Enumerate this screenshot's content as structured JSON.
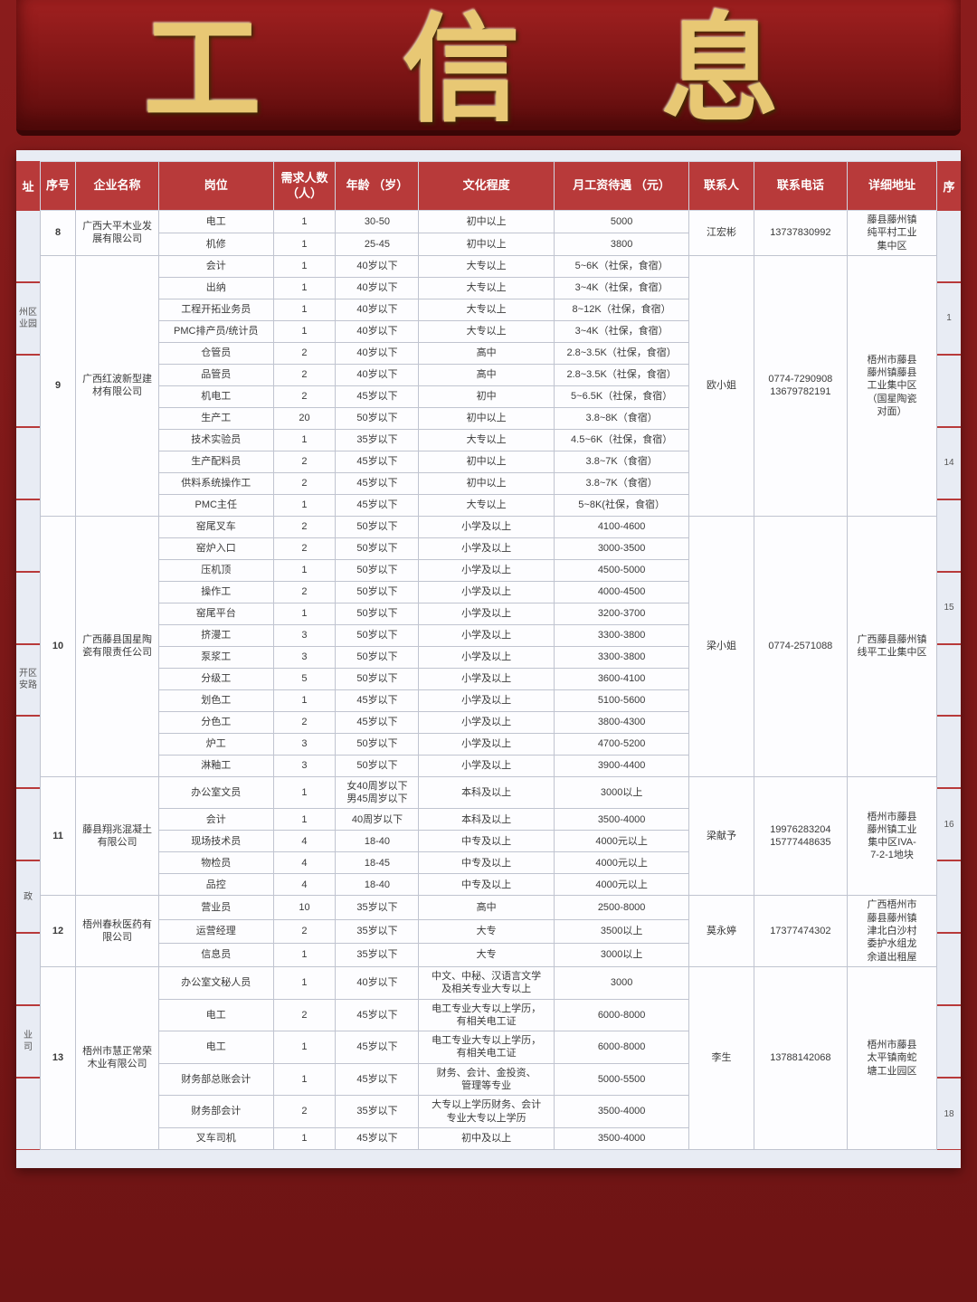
{
  "banner": "信 息",
  "banner_prefix": "工",
  "headers": {
    "idx": "序号",
    "company": "企业名称",
    "position": "岗位",
    "count": "需求人数\n（人）",
    "age": "年龄\n（岁）",
    "edu": "文化程度",
    "salary": "月工资待遇\n（元）",
    "contact": "联系人",
    "phone": "联系电话",
    "addr": "详细地址",
    "left_strip_head": "址",
    "right_strip_head": "序"
  },
  "left_strip": [
    "",
    "州区\n业园",
    "",
    "",
    "",
    "",
    "开区\n安路",
    "",
    "",
    "政",
    "",
    "业\n司",
    ""
  ],
  "right_strip": [
    "",
    "1",
    "",
    "14",
    "",
    "15",
    "",
    "",
    "16",
    "",
    "",
    "",
    "18"
  ],
  "groups": [
    {
      "idx": "8",
      "company": "广西大平木业发展有限公司",
      "contact": "江宏彬",
      "phone": "13737830992",
      "addr": "藤县藤州镇\n纯平村工业\n集中区",
      "rows": [
        {
          "pos": "电工",
          "cnt": "1",
          "age": "30-50",
          "edu": "初中以上",
          "sal": "5000"
        },
        {
          "pos": "机修",
          "cnt": "1",
          "age": "25-45",
          "edu": "初中以上",
          "sal": "3800"
        }
      ]
    },
    {
      "idx": "9",
      "company": "广西红波新型建材有限公司",
      "contact": "欧小姐",
      "phone": "0774-7290908\n13679782191",
      "addr": "梧州市藤县\n藤州镇藤县\n工业集中区\n（国星陶瓷\n对面）",
      "rows": [
        {
          "pos": "会计",
          "cnt": "1",
          "age": "40岁以下",
          "edu": "大专以上",
          "sal": "5~6K（社保，食宿）"
        },
        {
          "pos": "出纳",
          "cnt": "1",
          "age": "40岁以下",
          "edu": "大专以上",
          "sal": "3~4K（社保，食宿）"
        },
        {
          "pos": "工程开拓业务员",
          "cnt": "1",
          "age": "40岁以下",
          "edu": "大专以上",
          "sal": "8~12K（社保，食宿）"
        },
        {
          "pos": "PMC排产员/统计员",
          "cnt": "1",
          "age": "40岁以下",
          "edu": "大专以上",
          "sal": "3~4K（社保，食宿）"
        },
        {
          "pos": "仓管员",
          "cnt": "2",
          "age": "40岁以下",
          "edu": "高中",
          "sal": "2.8~3.5K（社保，食宿）"
        },
        {
          "pos": "品管员",
          "cnt": "2",
          "age": "40岁以下",
          "edu": "高中",
          "sal": "2.8~3.5K（社保，食宿）"
        },
        {
          "pos": "机电工",
          "cnt": "2",
          "age": "45岁以下",
          "edu": "初中",
          "sal": "5~6.5K（社保，食宿）"
        },
        {
          "pos": "生产工",
          "cnt": "20",
          "age": "50岁以下",
          "edu": "初中以上",
          "sal": "3.8~8K（食宿）"
        },
        {
          "pos": "技术实验员",
          "cnt": "1",
          "age": "35岁以下",
          "edu": "大专以上",
          "sal": "4.5~6K（社保，食宿）"
        },
        {
          "pos": "生产配料员",
          "cnt": "2",
          "age": "45岁以下",
          "edu": "初中以上",
          "sal": "3.8~7K（食宿）"
        },
        {
          "pos": "供料系统操作工",
          "cnt": "2",
          "age": "45岁以下",
          "edu": "初中以上",
          "sal": "3.8~7K（食宿）"
        },
        {
          "pos": "PMC主任",
          "cnt": "1",
          "age": "45岁以下",
          "edu": "大专以上",
          "sal": "5~8K(社保，食宿）"
        }
      ]
    },
    {
      "idx": "10",
      "company": "广西藤县国星陶瓷有限责任公司",
      "contact": "梁小姐",
      "phone": "0774-2571088",
      "addr": "广西藤县藤州镇\n线平工业集中区",
      "rows": [
        {
          "pos": "窑尾叉车",
          "cnt": "2",
          "age": "50岁以下",
          "edu": "小学及以上",
          "sal": "4100-4600"
        },
        {
          "pos": "窑炉入口",
          "cnt": "2",
          "age": "50岁以下",
          "edu": "小学及以上",
          "sal": "3000-3500"
        },
        {
          "pos": "压机顶",
          "cnt": "1",
          "age": "50岁以下",
          "edu": "小学及以上",
          "sal": "4500-5000"
        },
        {
          "pos": "操作工",
          "cnt": "2",
          "age": "50岁以下",
          "edu": "小学及以上",
          "sal": "4000-4500"
        },
        {
          "pos": "窑尾平台",
          "cnt": "1",
          "age": "50岁以下",
          "edu": "小学及以上",
          "sal": "3200-3700"
        },
        {
          "pos": "挤漫工",
          "cnt": "3",
          "age": "50岁以下",
          "edu": "小学及以上",
          "sal": "3300-3800"
        },
        {
          "pos": "泵浆工",
          "cnt": "3",
          "age": "50岁以下",
          "edu": "小学及以上",
          "sal": "3300-3800"
        },
        {
          "pos": "分级工",
          "cnt": "5",
          "age": "50岁以下",
          "edu": "小学及以上",
          "sal": "3600-4100"
        },
        {
          "pos": "划色工",
          "cnt": "1",
          "age": "45岁以下",
          "edu": "小学及以上",
          "sal": "5100-5600"
        },
        {
          "pos": "分色工",
          "cnt": "2",
          "age": "45岁以下",
          "edu": "小学及以上",
          "sal": "3800-4300"
        },
        {
          "pos": "炉工",
          "cnt": "3",
          "age": "50岁以下",
          "edu": "小学及以上",
          "sal": "4700-5200"
        },
        {
          "pos": "淋釉工",
          "cnt": "3",
          "age": "50岁以下",
          "edu": "小学及以上",
          "sal": "3900-4400"
        }
      ]
    },
    {
      "idx": "11",
      "company": "藤县翔兆混凝土有限公司",
      "contact": "梁献予",
      "phone": "19976283204\n15777448635",
      "addr": "梧州市藤县\n藤州镇工业\n集中区IVA-\n7-2-1地块",
      "rows": [
        {
          "pos": "办公室文员",
          "cnt": "1",
          "age": "女40周岁以下\n男45周岁以下",
          "edu": "本科及以上",
          "sal": "3000以上"
        },
        {
          "pos": "会计",
          "cnt": "1",
          "age": "40周岁以下",
          "edu": "本科及以上",
          "sal": "3500-4000"
        },
        {
          "pos": "现场技术员",
          "cnt": "4",
          "age": "18-40",
          "edu": "中专及以上",
          "sal": "4000元以上"
        },
        {
          "pos": "物检员",
          "cnt": "4",
          "age": "18-45",
          "edu": "中专及以上",
          "sal": "4000元以上"
        },
        {
          "pos": "品控",
          "cnt": "4",
          "age": "18-40",
          "edu": "中专及以上",
          "sal": "4000元以上"
        }
      ]
    },
    {
      "idx": "12",
      "company": "梧州春秋医药有限公司",
      "contact": "莫永婷",
      "phone": "17377474302",
      "addr": "广西梧州市\n藤县藤州镇\n津北白沙村\n委护水组龙\n余道出租屋",
      "rows": [
        {
          "pos": "营业员",
          "cnt": "10",
          "age": "35岁以下",
          "edu": "高中",
          "sal": "2500-8000"
        },
        {
          "pos": "运营经理",
          "cnt": "2",
          "age": "35岁以下",
          "edu": "大专",
          "sal": "3500以上"
        },
        {
          "pos": "信息员",
          "cnt": "1",
          "age": "35岁以下",
          "edu": "大专",
          "sal": "3000以上"
        }
      ]
    },
    {
      "idx": "13",
      "company": "梧州市慧正常荣木业有限公司",
      "contact": "李生",
      "phone": "13788142068",
      "addr": "梧州市藤县\n太平镇南蛇\n塘工业园区",
      "rows": [
        {
          "pos": "办公室文秘人员",
          "cnt": "1",
          "age": "40岁以下",
          "edu": "中文、中秘、汉语言文学\n及相关专业大专以上",
          "sal": "3000"
        },
        {
          "pos": "电工",
          "cnt": "2",
          "age": "45岁以下",
          "edu": "电工专业大专以上学历，\n有相关电工证",
          "sal": "6000-8000"
        },
        {
          "pos": "电工",
          "cnt": "1",
          "age": "45岁以下",
          "edu": "电工专业大专以上学历，\n有相关电工证",
          "sal": "6000-8000"
        },
        {
          "pos": "财务部总账会计",
          "cnt": "1",
          "age": "45岁以下",
          "edu": "财务、会计、金投资、\n管理等专业",
          "sal": "5000-5500"
        },
        {
          "pos": "财务部会计",
          "cnt": "2",
          "age": "35岁以下",
          "edu": "大专以上学历财务、会计\n专业大专以上学历",
          "sal": "3500-4000"
        },
        {
          "pos": "叉车司机",
          "cnt": "1",
          "age": "45岁以下",
          "edu": "初中及以上",
          "sal": "3500-4000"
        }
      ]
    }
  ],
  "colors": {
    "header_bg": "#b83a3a",
    "header_fg": "#ffffff",
    "border": "#c0c4d0",
    "sheet_bg": "#e8ecf4",
    "frame_bg": "#7a1818",
    "banner_gold": "#e8c874"
  }
}
